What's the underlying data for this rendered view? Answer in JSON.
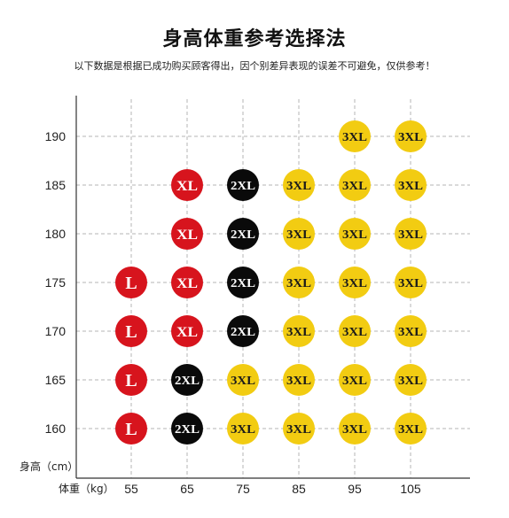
{
  "title": "身高体重参考选择法",
  "subtitle": "以下数据是根据已成功购买顾客得出，因个别差异表现的误差不可避免，仅供参考！",
  "colors": {
    "L": "#d7141d",
    "XL": "#d7141d",
    "2XL": "#0a0a0a",
    "3XL": "#f2cc12",
    "3XL_text": "#1a1a1a",
    "light_text": "#ffffff",
    "axis": "#333333",
    "grid": "#b5b5b5"
  },
  "chart_data": {
    "type": "table",
    "title": "身高体重参考选择法",
    "xlabel": "体重（kg）",
    "ylabel": "身高（cm）",
    "x_ticks": [
      "55",
      "65",
      "75",
      "85",
      "95",
      "105"
    ],
    "y_ticks": [
      "190",
      "185",
      "180",
      "175",
      "170",
      "165",
      "160"
    ],
    "grid": true,
    "points": [
      {
        "weight": 95,
        "height": 190,
        "size": "3XL"
      },
      {
        "weight": 105,
        "height": 190,
        "size": "3XL"
      },
      {
        "weight": 65,
        "height": 185,
        "size": "XL"
      },
      {
        "weight": 75,
        "height": 185,
        "size": "2XL"
      },
      {
        "weight": 85,
        "height": 185,
        "size": "3XL"
      },
      {
        "weight": 95,
        "height": 185,
        "size": "3XL"
      },
      {
        "weight": 105,
        "height": 185,
        "size": "3XL"
      },
      {
        "weight": 65,
        "height": 180,
        "size": "XL"
      },
      {
        "weight": 75,
        "height": 180,
        "size": "2XL"
      },
      {
        "weight": 85,
        "height": 180,
        "size": "3XL"
      },
      {
        "weight": 95,
        "height": 180,
        "size": "3XL"
      },
      {
        "weight": 105,
        "height": 180,
        "size": "3XL"
      },
      {
        "weight": 55,
        "height": 175,
        "size": "L"
      },
      {
        "weight": 65,
        "height": 175,
        "size": "XL"
      },
      {
        "weight": 75,
        "height": 175,
        "size": "2XL"
      },
      {
        "weight": 85,
        "height": 175,
        "size": "3XL"
      },
      {
        "weight": 95,
        "height": 175,
        "size": "3XL"
      },
      {
        "weight": 105,
        "height": 175,
        "size": "3XL"
      },
      {
        "weight": 55,
        "height": 170,
        "size": "L"
      },
      {
        "weight": 65,
        "height": 170,
        "size": "XL"
      },
      {
        "weight": 75,
        "height": 170,
        "size": "2XL"
      },
      {
        "weight": 85,
        "height": 170,
        "size": "3XL"
      },
      {
        "weight": 95,
        "height": 170,
        "size": "3XL"
      },
      {
        "weight": 105,
        "height": 170,
        "size": "3XL"
      },
      {
        "weight": 55,
        "height": 165,
        "size": "L"
      },
      {
        "weight": 65,
        "height": 165,
        "size": "2XL"
      },
      {
        "weight": 75,
        "height": 165,
        "size": "3XL"
      },
      {
        "weight": 85,
        "height": 165,
        "size": "3XL"
      },
      {
        "weight": 95,
        "height": 165,
        "size": "3XL"
      },
      {
        "weight": 105,
        "height": 165,
        "size": "3XL"
      },
      {
        "weight": 55,
        "height": 160,
        "size": "L"
      },
      {
        "weight": 65,
        "height": 160,
        "size": "2XL"
      },
      {
        "weight": 75,
        "height": 160,
        "size": "3XL"
      },
      {
        "weight": 85,
        "height": 160,
        "size": "3XL"
      },
      {
        "weight": 95,
        "height": 160,
        "size": "3XL"
      },
      {
        "weight": 105,
        "height": 160,
        "size": "3XL"
      }
    ]
  }
}
